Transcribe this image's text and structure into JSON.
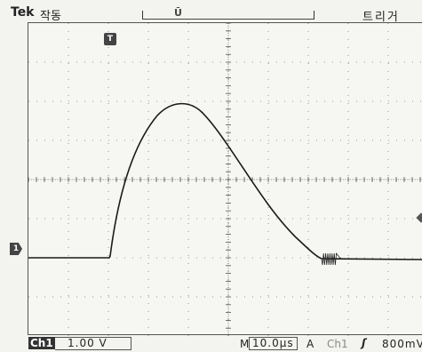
{
  "header": {
    "brand": "Tek",
    "mode": "작동",
    "trigger_label": "트리거",
    "record_position_marker": "Ū"
  },
  "display": {
    "trigger_marker": "T",
    "channel_marker": "1"
  },
  "status": {
    "channel": "Ch1",
    "volts_per_div": "1.00 V",
    "timebase_prefix": "M",
    "time_per_div": "10.0μs",
    "trigger_mode": "A",
    "trigger_source": "Ch1",
    "trigger_slope_icon": "rising-edge-icon",
    "trigger_level": "800mV"
  }
}
